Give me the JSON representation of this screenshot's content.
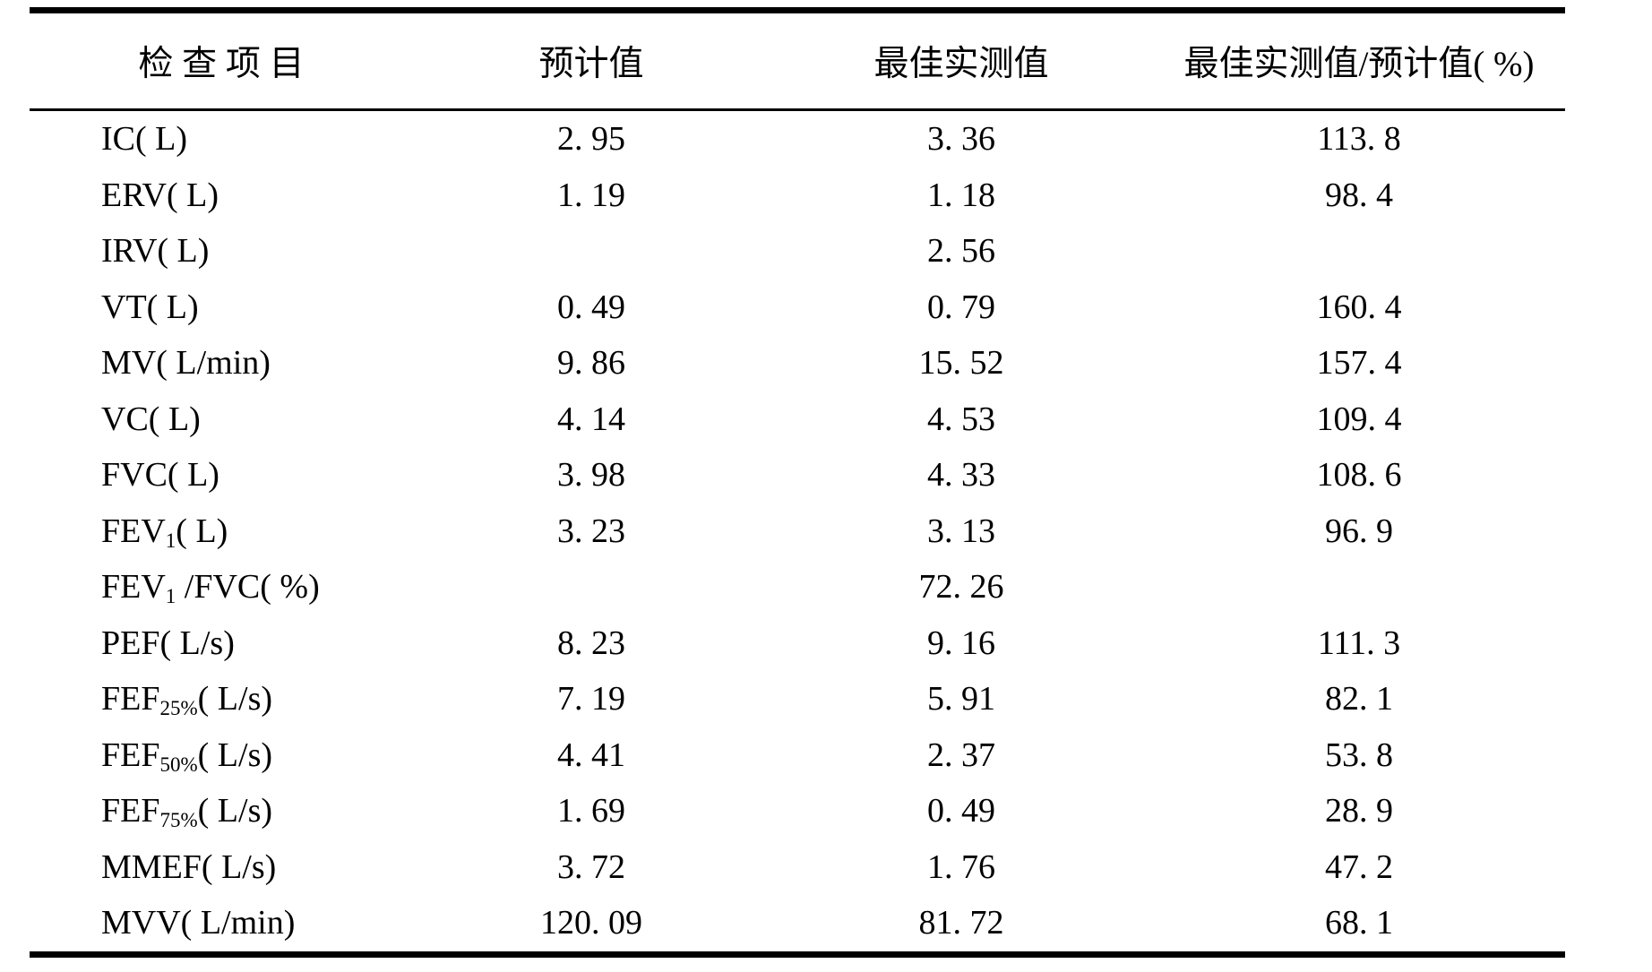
{
  "page": {
    "background_color": "#ffffff",
    "text_color": "#000000",
    "rule_color": "#000000"
  },
  "table": {
    "columns": [
      "检 查 项 目",
      "预计值",
      "最佳实测值",
      "最佳实测值/预计值( %)"
    ],
    "rows": [
      {
        "label": {
          "main": "IC( L)",
          "sub": "",
          "rest": ""
        },
        "predicted": "2. 95",
        "measured": "3. 36",
        "ratio": "113. 8"
      },
      {
        "label": {
          "main": "ERV( L)",
          "sub": "",
          "rest": ""
        },
        "predicted": "1. 19",
        "measured": "1. 18",
        "ratio": "98. 4"
      },
      {
        "label": {
          "main": "IRV( L)",
          "sub": "",
          "rest": ""
        },
        "predicted": "",
        "measured": "2. 56",
        "ratio": ""
      },
      {
        "label": {
          "main": "VT( L)",
          "sub": "",
          "rest": ""
        },
        "predicted": "0. 49",
        "measured": "0. 79",
        "ratio": "160. 4"
      },
      {
        "label": {
          "main": "MV( L/min)",
          "sub": "",
          "rest": ""
        },
        "predicted": "9. 86",
        "measured": "15. 52",
        "ratio": "157. 4"
      },
      {
        "label": {
          "main": "VC( L)",
          "sub": "",
          "rest": ""
        },
        "predicted": "4. 14",
        "measured": "4. 53",
        "ratio": "109. 4"
      },
      {
        "label": {
          "main": "FVC( L)",
          "sub": "",
          "rest": ""
        },
        "predicted": "3. 98",
        "measured": "4. 33",
        "ratio": "108. 6"
      },
      {
        "label": {
          "main": "FEV",
          "sub": "1",
          "rest": "( L)"
        },
        "predicted": "3. 23",
        "measured": "3. 13",
        "ratio": "96. 9"
      },
      {
        "label": {
          "main": "FEV",
          "sub": "1",
          "rest": " /FVC( %)"
        },
        "predicted": "",
        "measured": "72. 26",
        "ratio": ""
      },
      {
        "label": {
          "main": "PEF( L/s)",
          "sub": "",
          "rest": ""
        },
        "predicted": "8. 23",
        "measured": "9. 16",
        "ratio": "111. 3"
      },
      {
        "label": {
          "main": "FEF",
          "sub": "25%",
          "rest": "( L/s)"
        },
        "predicted": "7. 19",
        "measured": "5. 91",
        "ratio": "82. 1"
      },
      {
        "label": {
          "main": "FEF",
          "sub": "50%",
          "rest": "( L/s)"
        },
        "predicted": "4. 41",
        "measured": "2. 37",
        "ratio": "53. 8"
      },
      {
        "label": {
          "main": "FEF",
          "sub": "75%",
          "rest": "( L/s)"
        },
        "predicted": "1. 69",
        "measured": "0. 49",
        "ratio": "28. 9"
      },
      {
        "label": {
          "main": "MMEF( L/s)",
          "sub": "",
          "rest": ""
        },
        "predicted": "3. 72",
        "measured": "1. 76",
        "ratio": "47. 2"
      },
      {
        "label": {
          "main": "MVV( L/min)",
          "sub": "",
          "rest": ""
        },
        "predicted": "120. 09",
        "measured": "81. 72",
        "ratio": "68. 1"
      }
    ]
  }
}
